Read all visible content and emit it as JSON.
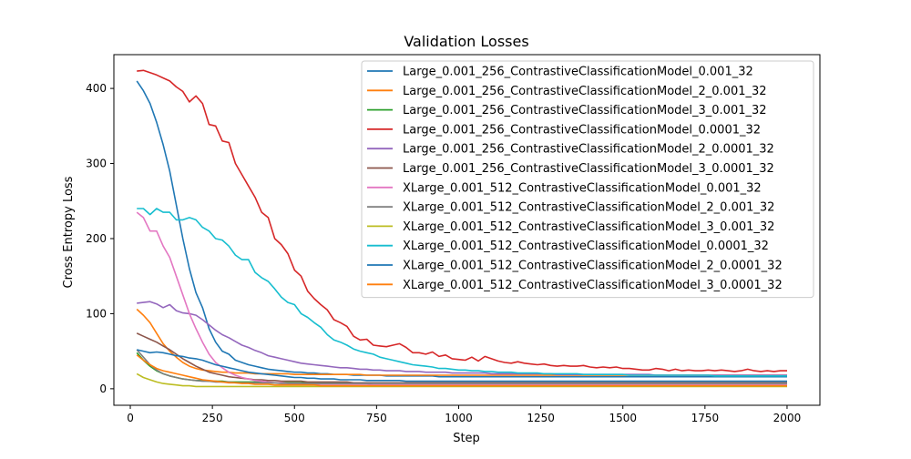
{
  "chart_data": {
    "type": "line",
    "title": "Validation Losses",
    "xlabel": "Step",
    "ylabel": "Cross Entropy Loss",
    "xlim": [
      -50,
      2100
    ],
    "ylim": [
      -22,
      445
    ],
    "xticks": [
      0,
      250,
      500,
      750,
      1000,
      1250,
      1500,
      1750,
      2000
    ],
    "yticks": [
      0,
      100,
      200,
      300,
      400
    ],
    "grid": false,
    "legend_position": "top-right",
    "x": [
      20,
      40,
      60,
      80,
      100,
      120,
      140,
      160,
      180,
      200,
      220,
      240,
      260,
      280,
      300,
      320,
      340,
      360,
      380,
      400,
      420,
      440,
      460,
      480,
      500,
      520,
      540,
      560,
      580,
      600,
      620,
      640,
      660,
      680,
      700,
      720,
      740,
      760,
      780,
      800,
      820,
      840,
      860,
      880,
      900,
      920,
      940,
      960,
      980,
      1000,
      1020,
      1040,
      1060,
      1080,
      1100,
      1120,
      1140,
      1160,
      1180,
      1200,
      1220,
      1240,
      1260,
      1280,
      1300,
      1320,
      1340,
      1360,
      1380,
      1400,
      1420,
      1440,
      1460,
      1480,
      1500,
      1520,
      1540,
      1560,
      1580,
      1600,
      1620,
      1640,
      1660,
      1680,
      1700,
      1720,
      1740,
      1760,
      1780,
      1800,
      1820,
      1840,
      1860,
      1880,
      1900,
      1920,
      1940,
      1960,
      1980,
      2000
    ],
    "series": [
      {
        "name": "Large_0.001_256_ContrastiveClassificationModel_0.001_32",
        "color": "#1f77b4",
        "values": [
          410,
          397,
          380,
          355,
          325,
          290,
          245,
          200,
          160,
          128,
          108,
          80,
          62,
          50,
          46,
          38,
          35,
          32,
          30,
          28,
          26,
          25,
          24,
          23,
          22,
          22,
          21,
          21,
          20,
          20,
          19,
          19,
          19,
          18,
          18,
          18,
          18,
          18,
          17,
          17,
          17,
          17,
          17,
          17,
          17,
          17,
          16,
          16,
          16,
          16,
          16,
          16,
          16,
          16,
          16,
          16,
          16,
          16,
          16,
          16,
          16,
          16,
          16,
          16,
          16,
          16,
          16,
          16,
          16,
          16,
          16,
          16,
          16,
          16,
          16,
          16,
          16,
          16,
          16,
          16,
          16,
          16,
          16,
          16,
          16,
          16,
          16,
          16,
          16,
          16,
          16,
          16,
          16,
          16,
          16,
          16,
          16,
          16,
          16,
          16
        ]
      },
      {
        "name": "Large_0.001_256_ContrastiveClassificationModel_2_0.001_32",
        "color": "#ff7f0e",
        "values": [
          106,
          98,
          88,
          74,
          60,
          50,
          42,
          35,
          30,
          27,
          25,
          24,
          23,
          22,
          22,
          21,
          21,
          21,
          20,
          20,
          20,
          20,
          20,
          20,
          19,
          19,
          19,
          19,
          19,
          19,
          19,
          19,
          19,
          19,
          19,
          18,
          18,
          18,
          18,
          18,
          18,
          18,
          18,
          18,
          18,
          18,
          18,
          18,
          18,
          18,
          18,
          18,
          18,
          18,
          18,
          18,
          18,
          18,
          18,
          18,
          18,
          18,
          18,
          18,
          18,
          18,
          18,
          18,
          18,
          18,
          18,
          18,
          18,
          18,
          18,
          18,
          18,
          18,
          18,
          18,
          18,
          18,
          18,
          18,
          18,
          18,
          18,
          18,
          18,
          18,
          18,
          18,
          18,
          18,
          18,
          18,
          18,
          18,
          18,
          18
        ]
      },
      {
        "name": "Large_0.001_256_ContrastiveClassificationModel_3_0.001_32",
        "color": "#2ca02c",
        "values": [
          48,
          38,
          30,
          24,
          20,
          17,
          15,
          13,
          12,
          11,
          11,
          10,
          10,
          10,
          9,
          9,
          9,
          9,
          9,
          9,
          8,
          8,
          8,
          8,
          8,
          8,
          8,
          8,
          8,
          8,
          8,
          8,
          8,
          8,
          8,
          8,
          8,
          8,
          8,
          8,
          8,
          8,
          8,
          8,
          8,
          8,
          8,
          8,
          8,
          8,
          8,
          8,
          8,
          8,
          8,
          8,
          8,
          8,
          8,
          8,
          8,
          8,
          8,
          8,
          8,
          8,
          8,
          8,
          8,
          8,
          8,
          8,
          8,
          8,
          8,
          8,
          8,
          8,
          8,
          8,
          8,
          8,
          8,
          8,
          8,
          8,
          8,
          8,
          8,
          8,
          8,
          8,
          8,
          8,
          8,
          8,
          8,
          8,
          8,
          8
        ]
      },
      {
        "name": "Large_0.001_256_ContrastiveClassificationModel_0.0001_32",
        "color": "#d62728",
        "values": [
          423,
          424,
          421,
          418,
          414,
          410,
          402,
          396,
          382,
          390,
          380,
          352,
          350,
          330,
          328,
          300,
          285,
          270,
          255,
          235,
          228,
          200,
          192,
          180,
          158,
          150,
          130,
          120,
          112,
          105,
          92,
          88,
          83,
          70,
          65,
          66,
          58,
          57,
          56,
          58,
          60,
          55,
          48,
          48,
          46,
          49,
          43,
          45,
          40,
          39,
          38,
          42,
          37,
          43,
          40,
          37,
          35,
          34,
          36,
          34,
          33,
          32,
          33,
          31,
          30,
          31,
          30,
          30,
          31,
          29,
          28,
          29,
          28,
          29,
          27,
          27,
          26,
          25,
          25,
          27,
          26,
          24,
          26,
          24,
          25,
          24,
          24,
          25,
          24,
          25,
          24,
          23,
          24,
          26,
          24,
          23,
          24,
          23,
          24,
          24
        ]
      },
      {
        "name": "Large_0.001_256_ContrastiveClassificationModel_2_0.0001_32",
        "color": "#9467bd",
        "values": [
          114,
          115,
          116,
          113,
          108,
          112,
          104,
          101,
          100,
          98,
          92,
          85,
          78,
          72,
          68,
          63,
          58,
          55,
          51,
          48,
          44,
          42,
          40,
          38,
          36,
          34,
          33,
          32,
          31,
          30,
          29,
          28,
          28,
          27,
          26,
          26,
          25,
          25,
          24,
          24,
          24,
          23,
          23,
          23,
          22,
          22,
          22,
          22,
          21,
          21,
          21,
          21,
          21,
          21,
          20,
          20,
          20,
          20,
          20,
          20,
          20,
          20,
          20,
          20,
          19,
          19,
          19,
          19,
          19,
          19,
          19,
          19,
          19,
          19,
          19,
          19,
          19,
          19,
          19,
          18,
          18,
          18,
          18,
          18,
          18,
          18,
          18,
          18,
          18,
          18,
          18,
          18,
          18,
          18,
          18,
          18,
          18,
          18,
          18,
          18
        ]
      },
      {
        "name": "Large_0.001_256_ContrastiveClassificationModel_3_0.0001_32",
        "color": "#8c564b",
        "values": [
          74,
          70,
          66,
          62,
          57,
          52,
          46,
          40,
          35,
          30,
          26,
          22,
          20,
          18,
          16,
          15,
          14,
          13,
          12,
          12,
          11,
          11,
          10,
          10,
          10,
          10,
          9,
          9,
          9,
          9,
          9,
          9,
          9,
          8,
          8,
          8,
          8,
          8,
          8,
          8,
          8,
          8,
          8,
          8,
          8,
          8,
          8,
          8,
          8,
          8,
          8,
          8,
          8,
          8,
          8,
          8,
          8,
          8,
          8,
          8,
          8,
          8,
          8,
          8,
          8,
          8,
          8,
          8,
          8,
          8,
          8,
          8,
          8,
          8,
          8,
          8,
          8,
          8,
          8,
          8,
          8,
          8,
          8,
          8,
          8,
          8,
          8,
          8,
          8,
          8,
          8,
          8,
          8,
          8,
          8,
          8,
          8,
          8,
          8,
          8
        ]
      },
      {
        "name": "XLarge_0.001_512_ContrastiveClassificationModel_0.001_32",
        "color": "#e377c2",
        "values": [
          235,
          228,
          210,
          210,
          190,
          175,
          150,
          125,
          100,
          80,
          62,
          46,
          35,
          28,
          22,
          18,
          15,
          13,
          11,
          10,
          9,
          8,
          8,
          7,
          7,
          7,
          6,
          6,
          6,
          6,
          6,
          6,
          6,
          6,
          6,
          6,
          5,
          5,
          5,
          5,
          5,
          5,
          5,
          5,
          5,
          5,
          5,
          5,
          5,
          5,
          5,
          5,
          5,
          5,
          5,
          5,
          5,
          5,
          5,
          5,
          5,
          5,
          5,
          5,
          5,
          5,
          5,
          5,
          5,
          5,
          5,
          5,
          5,
          5,
          5,
          5,
          5,
          5,
          5,
          5,
          5,
          5,
          5,
          5,
          5,
          5,
          5,
          5,
          5,
          5,
          5,
          5,
          5,
          5,
          5,
          5,
          5,
          5,
          5,
          5
        ]
      },
      {
        "name": "XLarge_0.001_512_ContrastiveClassificationModel_2_0.001_32",
        "color": "#7f7f7f",
        "values": [
          52,
          42,
          32,
          25,
          20,
          17,
          15,
          13,
          12,
          11,
          10,
          10,
          9,
          9,
          9,
          8,
          8,
          8,
          8,
          8,
          8,
          8,
          7,
          7,
          7,
          7,
          7,
          7,
          7,
          7,
          7,
          7,
          7,
          7,
          7,
          7,
          7,
          7,
          7,
          7,
          7,
          7,
          7,
          7,
          7,
          7,
          7,
          7,
          7,
          7,
          7,
          7,
          7,
          7,
          7,
          7,
          7,
          7,
          7,
          7,
          7,
          7,
          7,
          7,
          7,
          7,
          7,
          7,
          7,
          7,
          7,
          7,
          7,
          7,
          7,
          7,
          7,
          7,
          7,
          7,
          7,
          7,
          7,
          7,
          7,
          7,
          7,
          7,
          7,
          7,
          7,
          7,
          7,
          7,
          7,
          7,
          7,
          7,
          7,
          7
        ]
      },
      {
        "name": "XLarge_0.001_512_ContrastiveClassificationModel_3_0.001_32",
        "color": "#bcbd22",
        "values": [
          20,
          15,
          12,
          9,
          7,
          6,
          5,
          4,
          4,
          3,
          3,
          3,
          3,
          3,
          3,
          3,
          3,
          3,
          3,
          3,
          3,
          3,
          3,
          3,
          3,
          3,
          3,
          3,
          3,
          3,
          3,
          3,
          3,
          3,
          3,
          3,
          3,
          3,
          3,
          3,
          3,
          3,
          3,
          3,
          3,
          3,
          3,
          3,
          3,
          3,
          3,
          3,
          3,
          3,
          3,
          3,
          3,
          3,
          3,
          3,
          3,
          3,
          3,
          3,
          3,
          3,
          3,
          3,
          3,
          3,
          3,
          3,
          3,
          3,
          3,
          3,
          3,
          3,
          3,
          3,
          3,
          3,
          3,
          3,
          3,
          3,
          3,
          3,
          3,
          3,
          3,
          3,
          3,
          3,
          3,
          3,
          3,
          3,
          3,
          3
        ]
      },
      {
        "name": "XLarge_0.001_512_ContrastiveClassificationModel_0.0001_32",
        "color": "#17becf",
        "values": [
          240,
          240,
          232,
          240,
          235,
          235,
          225,
          225,
          228,
          225,
          215,
          210,
          200,
          198,
          190,
          178,
          172,
          172,
          155,
          148,
          143,
          133,
          122,
          115,
          112,
          100,
          95,
          88,
          82,
          72,
          65,
          62,
          58,
          53,
          50,
          48,
          46,
          42,
          40,
          38,
          36,
          34,
          32,
          31,
          30,
          29,
          27,
          27,
          26,
          25,
          25,
          24,
          24,
          23,
          23,
          22,
          22,
          22,
          21,
          21,
          21,
          21,
          20,
          20,
          20,
          20,
          20,
          20,
          19,
          19,
          19,
          19,
          19,
          19,
          19,
          18,
          18,
          18,
          18,
          18,
          18,
          18,
          18,
          18,
          18,
          18,
          18,
          18,
          17,
          17,
          17,
          17,
          17,
          17,
          17,
          17,
          17,
          17,
          17,
          17
        ]
      },
      {
        "name": "XLarge_0.001_512_ContrastiveClassificationModel_2_0.0001_32",
        "color": "#1f77b4",
        "values": [
          52,
          50,
          48,
          49,
          48,
          46,
          44,
          43,
          41,
          40,
          38,
          35,
          32,
          30,
          28,
          26,
          24,
          22,
          21,
          20,
          19,
          18,
          17,
          16,
          15,
          15,
          14,
          14,
          13,
          13,
          13,
          12,
          12,
          12,
          12,
          11,
          11,
          11,
          11,
          11,
          11,
          10,
          10,
          10,
          10,
          10,
          10,
          10,
          10,
          10,
          10,
          10,
          10,
          10,
          10,
          10,
          10,
          10,
          10,
          10,
          10,
          10,
          10,
          10,
          10,
          10,
          10,
          10,
          10,
          10,
          10,
          10,
          10,
          10,
          10,
          10,
          10,
          10,
          10,
          10,
          10,
          10,
          10,
          10,
          10,
          10,
          10,
          10,
          10,
          10,
          10,
          10,
          10,
          10,
          10,
          10,
          10,
          10,
          10,
          10
        ]
      },
      {
        "name": "XLarge_0.001_512_ContrastiveClassificationModel_3_0.0001_32",
        "color": "#ff7f0e",
        "values": [
          45,
          38,
          32,
          27,
          24,
          22,
          20,
          18,
          16,
          14,
          12,
          11,
          10,
          9,
          8,
          8,
          7,
          7,
          6,
          6,
          6,
          5,
          5,
          5,
          5,
          5,
          5,
          5,
          4,
          4,
          4,
          4,
          4,
          4,
          4,
          4,
          4,
          4,
          4,
          4,
          4,
          4,
          4,
          4,
          4,
          4,
          4,
          4,
          4,
          4,
          4,
          4,
          4,
          4,
          4,
          4,
          4,
          4,
          4,
          4,
          4,
          4,
          4,
          4,
          4,
          4,
          4,
          4,
          4,
          4,
          4,
          4,
          4,
          4,
          4,
          4,
          4,
          4,
          4,
          4,
          4,
          4,
          4,
          4,
          4,
          4,
          4,
          4,
          4,
          4,
          4,
          4,
          4,
          4,
          4,
          4,
          4,
          4,
          4,
          4
        ]
      }
    ]
  }
}
